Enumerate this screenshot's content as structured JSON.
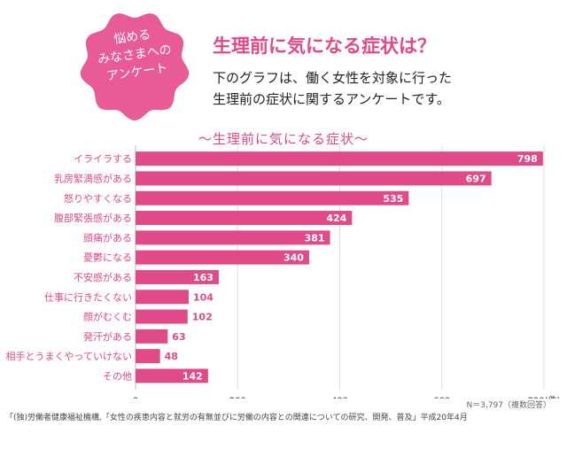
{
  "badge": {
    "lines": [
      "悩める",
      "みなさまへの",
      "アンケート"
    ],
    "color": "#e85b97"
  },
  "header": {
    "title": "生理前に気になる症状は？",
    "lines": [
      "下のグラフは、働く女性を対象に行った",
      "生理前の症状に関するアンケートです。"
    ]
  },
  "chart_data": {
    "type": "bar",
    "orientation": "horizontal",
    "title": "〜生理前に気になる症状〜",
    "categories": [
      "イライラする",
      "乳房緊満感がある",
      "怒りやすくなる",
      "腹部緊張感がある",
      "頭痛がある",
      "憂鬱になる",
      "不安感がある",
      "仕事に行きたくない",
      "顔がむくむ",
      "発汗がある",
      "相手とうまくやっていけない",
      "その他"
    ],
    "values": [
      798,
      697,
      535,
      424,
      381,
      340,
      163,
      104,
      102,
      63,
      48,
      142
    ],
    "x_ticks": [
      "0",
      "200",
      "400",
      "600",
      "800(件)"
    ],
    "xlim": [
      0,
      800
    ],
    "bar_color": "#e04a88",
    "grid": true
  },
  "note": "N＝3,797（複数回答）",
  "source": "「(独)労働者健康福祉機構,「女性の疾患内容と就労の有無並びに労働の内容との関連についての研究、開発、普及」平成20年4月"
}
